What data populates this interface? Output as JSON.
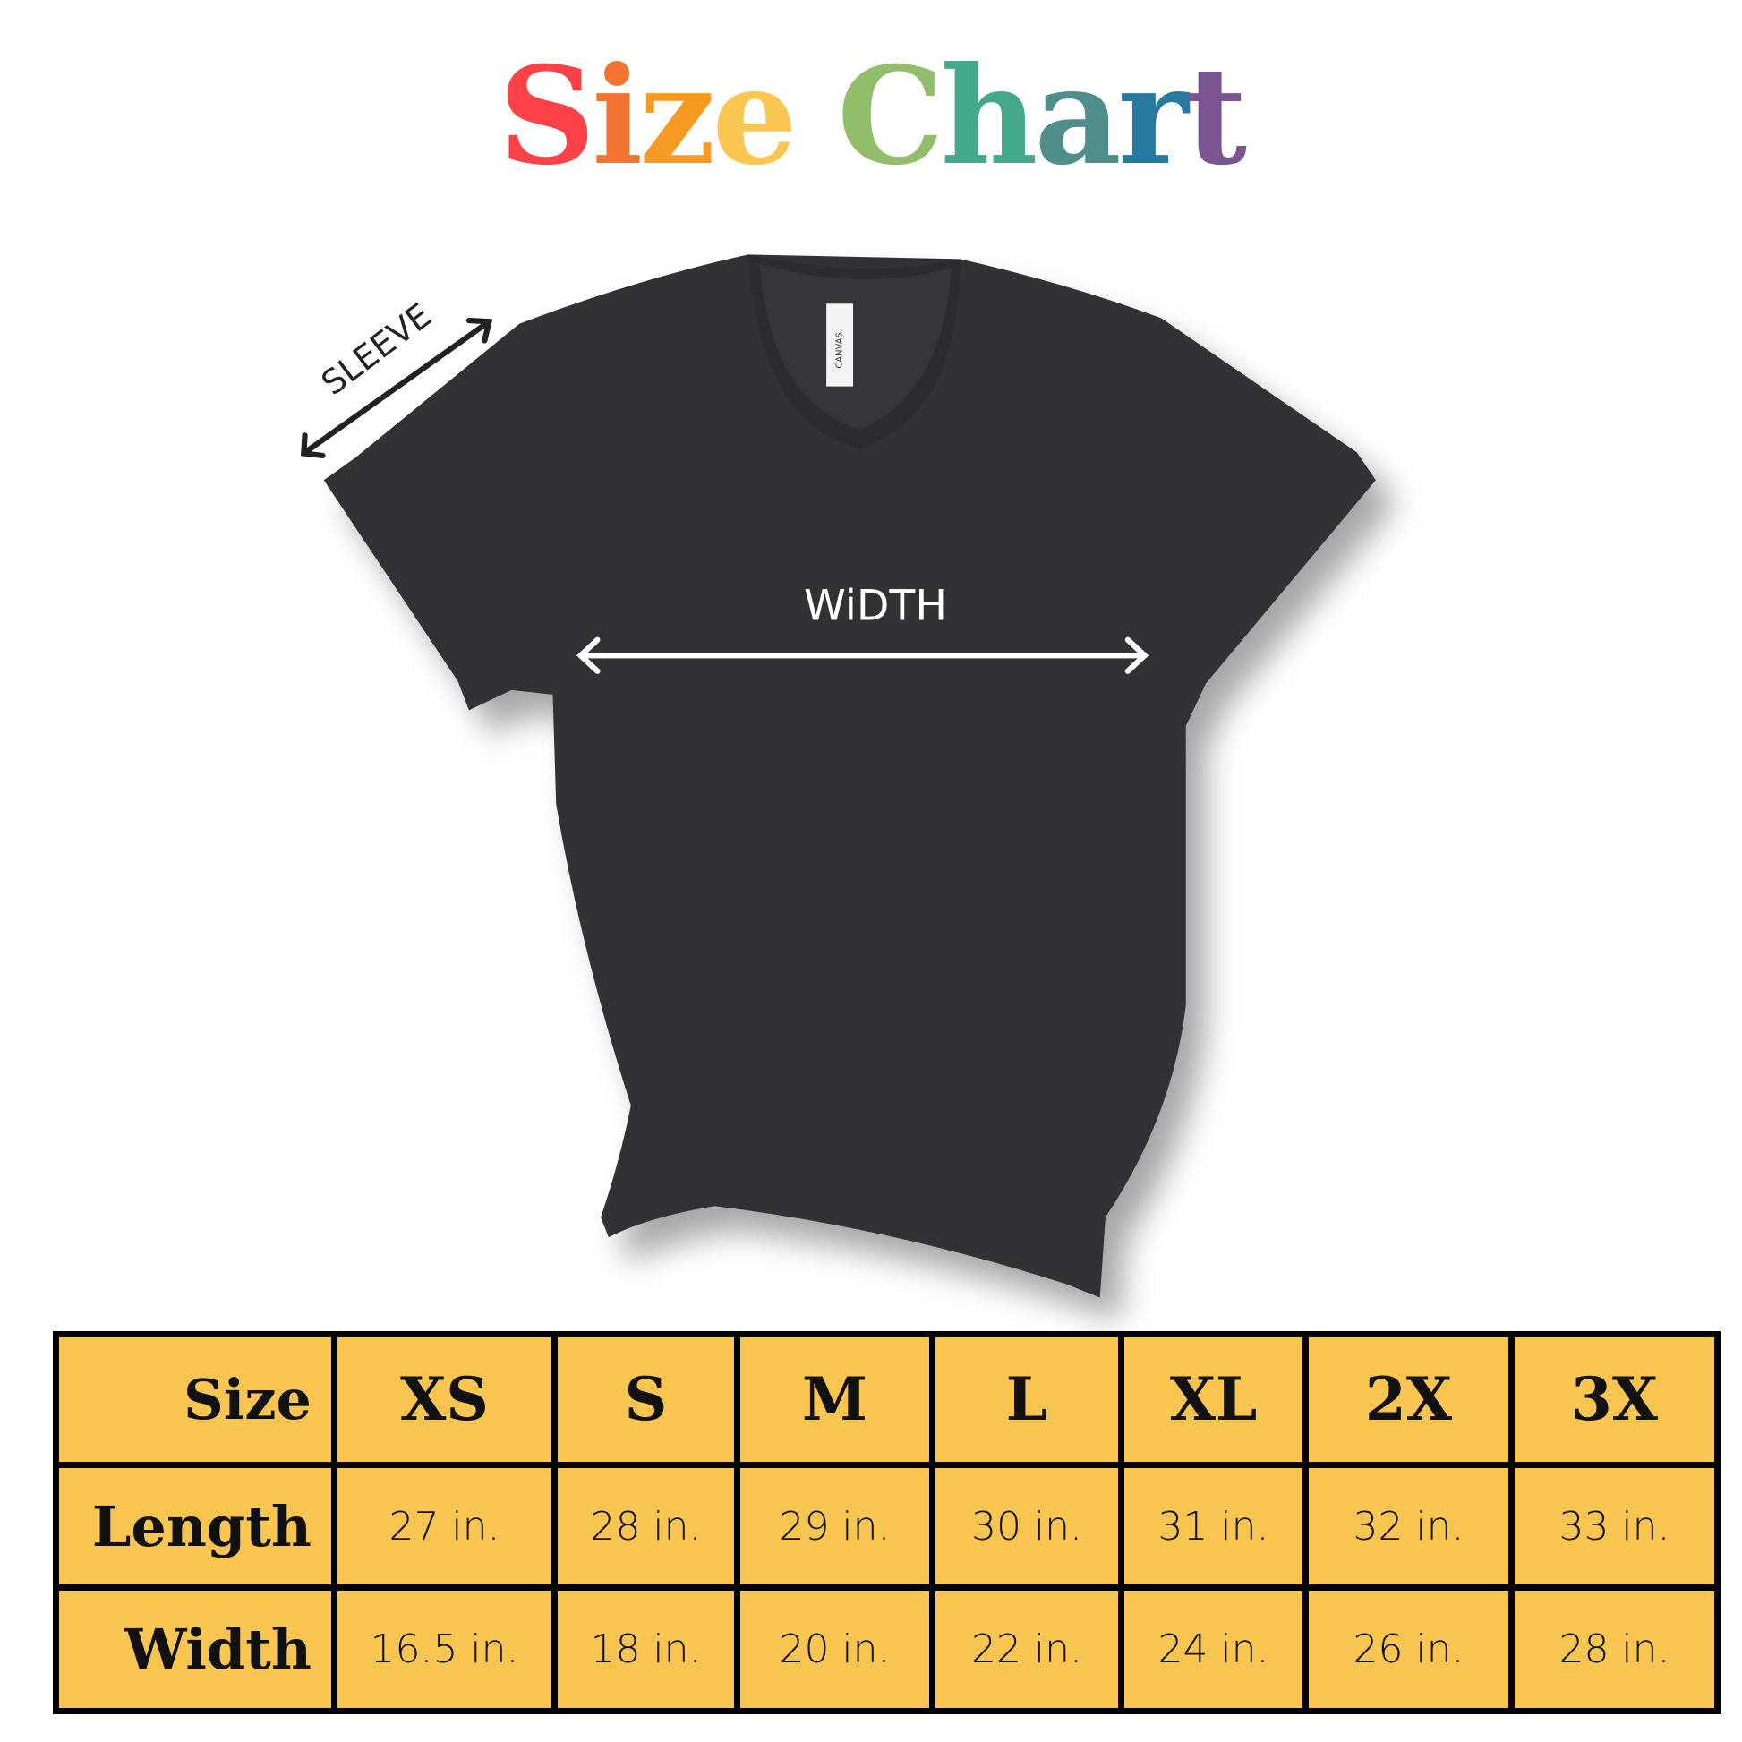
{
  "title": {
    "text": "Size Chart",
    "letter_colors": [
      "#fc4247",
      "#f37430",
      "#f89922",
      "#f9c651",
      "#ffffff",
      "#92bd6b",
      "#44a98a",
      "#4e8f8c",
      "#27799f",
      "#7b5592"
    ]
  },
  "shirt": {
    "color": "#333335",
    "tag_text": "CANVAS.",
    "sleeve_label": "SLEEVE",
    "width_label": "WiDTH"
  },
  "table": {
    "header_label": "Size",
    "sizes": [
      "XS",
      "S",
      "M",
      "L",
      "XL",
      "2X",
      "3X"
    ],
    "rows": [
      {
        "label": "Length",
        "values": [
          "27 in.",
          "28 in.",
          "29 in.",
          "30 in.",
          "31 in.",
          "32 in.",
          "33 in."
        ]
      },
      {
        "label": "Width",
        "values": [
          "16.5 in.",
          "18 in.",
          "20 in.",
          "22 in.",
          "24 in.",
          "26 in.",
          "28 in."
        ]
      }
    ],
    "fill_color": "#f8c550"
  }
}
